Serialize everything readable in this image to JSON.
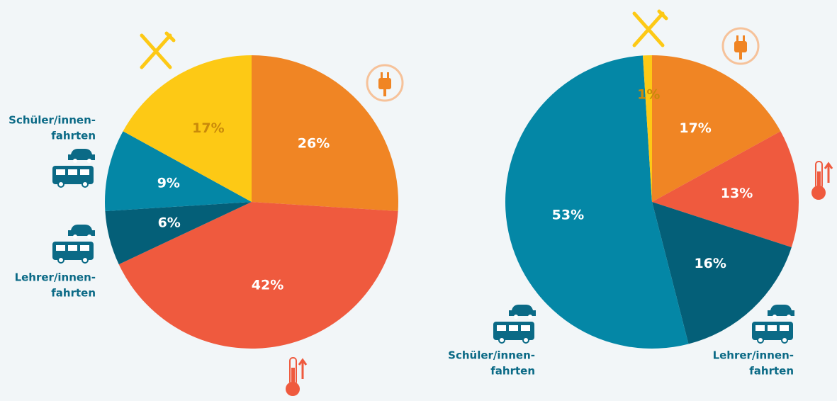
{
  "chart_data": [
    {
      "type": "pie",
      "values": [
        26,
        42,
        6,
        9,
        17
      ],
      "value_labels": [
        "26%",
        "42%",
        "6%",
        "9%",
        "17%"
      ],
      "colors": [
        "#f08524",
        "#ef5a3e",
        "#045f78",
        "#0487a6",
        "#fdc915"
      ],
      "annotations": [
        {
          "text": [
            "Schüler/innen-",
            "fahrten"
          ]
        },
        {
          "text": [
            "Lehrer/innen-",
            "fahrten"
          ]
        }
      ]
    },
    {
      "type": "pie",
      "values": [
        17,
        13,
        16,
        53,
        1
      ],
      "value_labels": [
        "17%",
        "13%",
        "16%",
        "53%",
        "1%"
      ],
      "colors": [
        "#f08524",
        "#ef5a3e",
        "#045f78",
        "#0487a6",
        "#fdc915"
      ],
      "annotations": [
        {
          "text": [
            "Schüler/innen-",
            "fahrten"
          ]
        },
        {
          "text": [
            "Lehrer/innen-",
            "fahrten"
          ]
        }
      ]
    }
  ]
}
